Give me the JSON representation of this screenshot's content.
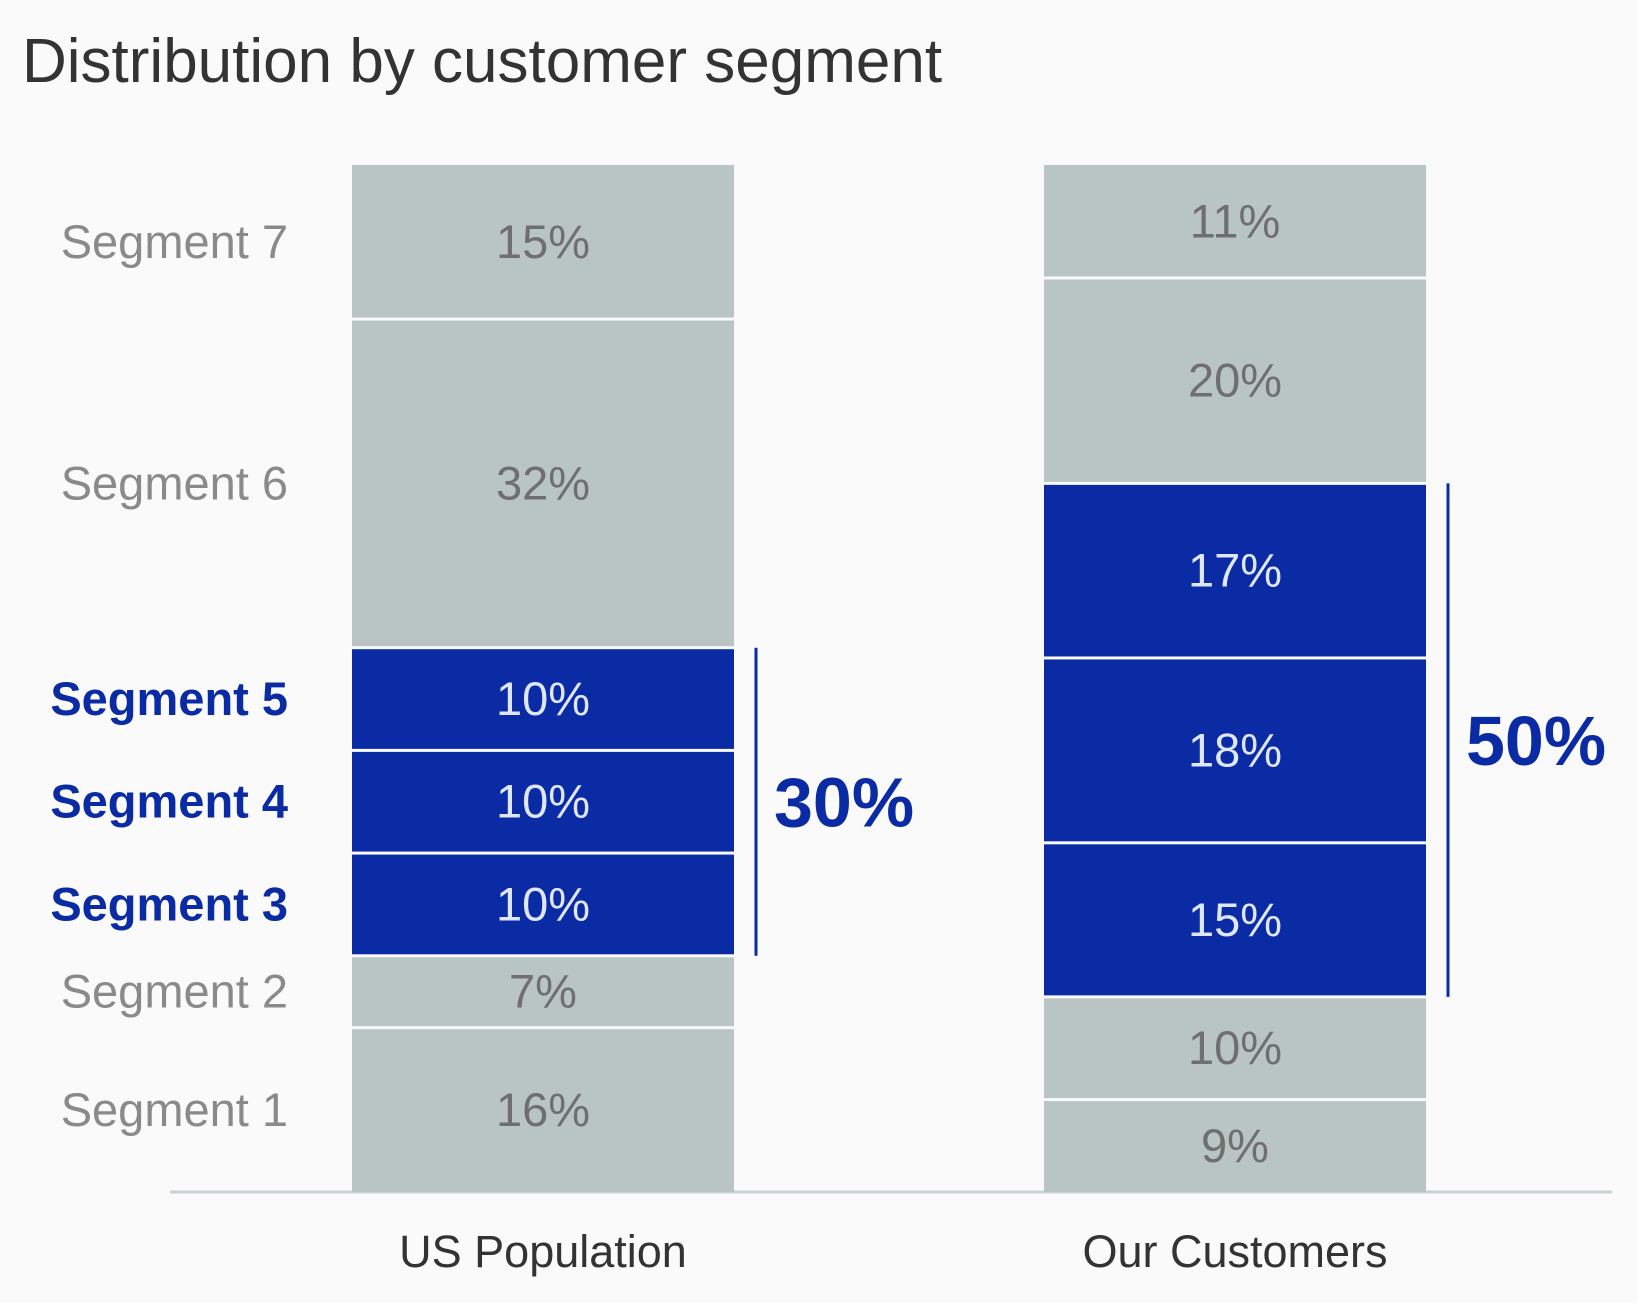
{
  "chart_data": {
    "type": "stacked-bar",
    "title": "Distribution by customer segment",
    "categories": [
      "US Population",
      "Our Customers"
    ],
    "series": [
      {
        "name": "Segment 1",
        "values": [
          16,
          9
        ],
        "highlighted": false
      },
      {
        "name": "Segment 2",
        "values": [
          7,
          10
        ],
        "highlighted": false
      },
      {
        "name": "Segment 3",
        "values": [
          10,
          15
        ],
        "highlighted": true
      },
      {
        "name": "Segment 4",
        "values": [
          10,
          18
        ],
        "highlighted": true
      },
      {
        "name": "Segment 5",
        "values": [
          10,
          17
        ],
        "highlighted": true
      },
      {
        "name": "Segment 6",
        "values": [
          32,
          20
        ],
        "highlighted": false
      },
      {
        "name": "Segment 7",
        "values": [
          15,
          11
        ],
        "highlighted": false
      }
    ],
    "value_suffix": "%",
    "group_totals": [
      {
        "category": "US Population",
        "label": "30%",
        "value": 30
      },
      {
        "category": "Our Customers",
        "label": "50%",
        "value": 50
      }
    ],
    "ylim": [
      0,
      100
    ],
    "colors": {
      "base": "#b8c5c2",
      "highlight": "#0a2ba3",
      "base_text": "#6f6f6f",
      "highlight_text": "#dfe6ff",
      "segment_label": "#8a8a8a",
      "axis": "#c8d2d4"
    }
  }
}
